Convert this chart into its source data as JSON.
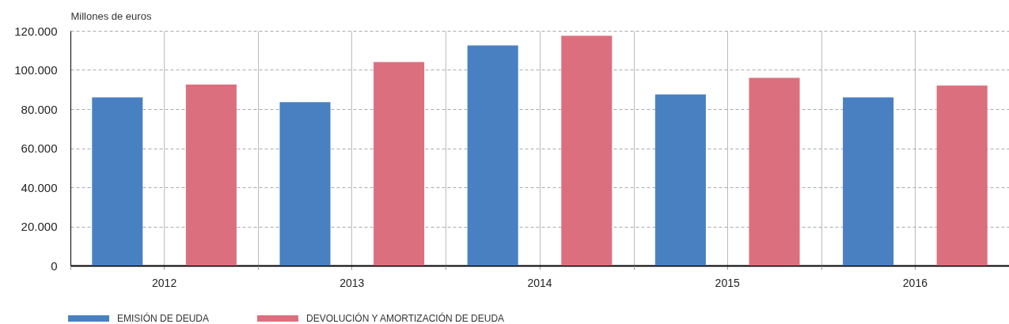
{
  "chart_data": {
    "type": "bar",
    "ylabel": "Millones de euros",
    "categories": [
      "2012",
      "2013",
      "2014",
      "2015",
      "2016"
    ],
    "series": [
      {
        "name": "EMISIÓN DE DEUDA",
        "color": "#4880c2",
        "values": [
          86000,
          83500,
          112500,
          87500,
          86000
        ]
      },
      {
        "name": "DEVOLUCIÓN Y AMORTIZACIÓN DE DEUDA",
        "color": "#dc6f7e",
        "values": [
          92500,
          104000,
          117500,
          96000,
          92000
        ]
      }
    ],
    "ylim": [
      0,
      120000
    ],
    "yticks": [
      0,
      {
        "value": 20000,
        "label": "20.000"
      },
      {
        "value": 40000,
        "label": "40.000"
      },
      {
        "value": 60000,
        "label": "60.000"
      },
      {
        "value": 80000,
        "label": "80.000"
      },
      {
        "value": 100000,
        "label": "100.000"
      },
      {
        "value": 120000,
        "label": "120.000"
      }
    ],
    "grid": true,
    "legend": "bottom"
  }
}
